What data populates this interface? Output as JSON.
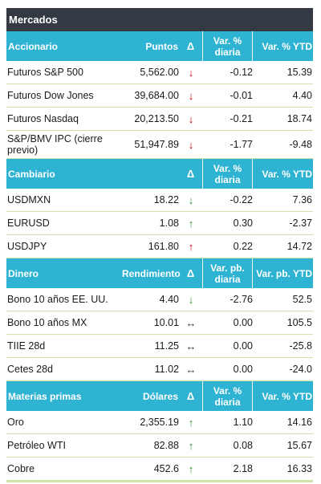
{
  "title": "Mercados",
  "sections": [
    {
      "header": {
        "name": "Accionario",
        "val": "Puntos",
        "arrow": "Δ",
        "daily": "Var. % diaria",
        "ytd": "Var. % YTD"
      },
      "rows": [
        {
          "name": "Futuros S&P 500",
          "val": "5,562.00",
          "arrow": "↓",
          "arrow_kind": "down",
          "daily": "-0.12",
          "ytd": "15.39"
        },
        {
          "name": "Futuros Dow Jones",
          "val": "39,684.00",
          "arrow": "↓",
          "arrow_kind": "down",
          "daily": "-0.01",
          "ytd": "4.40"
        },
        {
          "name": "Futuros Nasdaq",
          "val": "20,213.50",
          "arrow": "↓",
          "arrow_kind": "down",
          "daily": "-0.21",
          "ytd": "18.74"
        },
        {
          "name": "S&P/BMV IPC (cierre previo)",
          "val": "51,947.89",
          "arrow": "↓",
          "arrow_kind": "down",
          "daily": "-1.77",
          "ytd": "-9.48"
        }
      ]
    },
    {
      "header": {
        "name": "Cambiario",
        "val": "",
        "arrow": "Δ",
        "daily": "Var. % diaria",
        "ytd": "Var. % YTD"
      },
      "rows": [
        {
          "name": "USDMXN",
          "val": "18.22",
          "arrow": "↓",
          "arrow_kind": "down-green",
          "daily": "-0.22",
          "ytd": "7.36"
        },
        {
          "name": "EURUSD",
          "val": "1.08",
          "arrow": "↑",
          "arrow_kind": "up-green",
          "daily": "0.30",
          "ytd": "-2.37"
        },
        {
          "name": "USDJPY",
          "val": "161.80",
          "arrow": "↑",
          "arrow_kind": "up-red",
          "daily": "0.22",
          "ytd": "14.72"
        }
      ]
    },
    {
      "header": {
        "name": "Dinero",
        "val": "Rendimiento",
        "arrow": "Δ",
        "daily": "Var. pb. diaria",
        "ytd": "Var. pb. YTD"
      },
      "rows": [
        {
          "name": "Bono 10 años EE. UU.",
          "val": "4.40",
          "arrow": "↓",
          "arrow_kind": "down-green",
          "daily": "-2.76",
          "ytd": "52.5"
        },
        {
          "name": "Bono 10 años MX",
          "val": "10.01",
          "arrow": "↔",
          "arrow_kind": "flat",
          "daily": "0.00",
          "ytd": "105.5"
        },
        {
          "name": "TIIE 28d",
          "val": "11.25",
          "arrow": "↔",
          "arrow_kind": "flat",
          "daily": "0.00",
          "ytd": "-25.8"
        },
        {
          "name": "Cetes 28d",
          "val": "11.02",
          "arrow": "↔",
          "arrow_kind": "flat",
          "daily": "0.00",
          "ytd": "-24.0"
        }
      ]
    },
    {
      "header": {
        "name": "Materias primas",
        "val": "Dólares",
        "arrow": "Δ",
        "daily": "Var. % diaria",
        "ytd": "Var. % YTD"
      },
      "rows": [
        {
          "name": "Oro",
          "val": "2,355.19",
          "arrow": "↑",
          "arrow_kind": "up-green",
          "daily": "1.10",
          "ytd": "14.16"
        },
        {
          "name": "Petróleo WTI",
          "val": "82.88",
          "arrow": "↑",
          "arrow_kind": "up-green",
          "daily": "0.08",
          "ytd": "15.67"
        },
        {
          "name": "Cobre",
          "val": "452.6",
          "arrow": "↑",
          "arrow_kind": "up-green",
          "daily": "2.18",
          "ytd": "16.33"
        }
      ]
    }
  ],
  "colors": {
    "title_bg": "#333a44",
    "header_bg": "#2fb3d3",
    "row_rule": "#cfe3a8",
    "arrow_red": "#c00000",
    "arrow_green": "#2e8b2e"
  }
}
